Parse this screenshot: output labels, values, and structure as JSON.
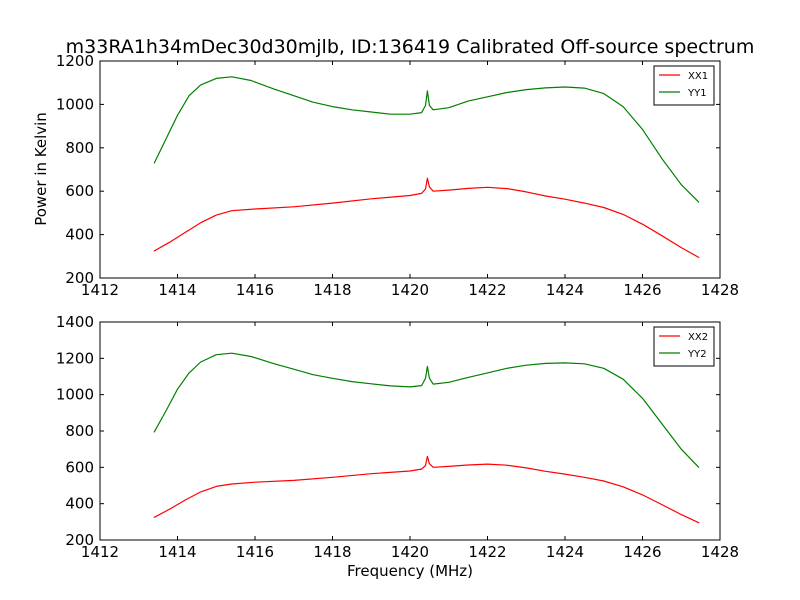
{
  "chart_data": {
    "title": "m33RA1h34mDec30d30mjlb, ID:136419 Calibrated Off-source spectrum",
    "xlabel": "Frequency (MHz)",
    "ylabel": "Power in Kelvin",
    "panels": [
      {
        "type": "line",
        "xlim": [
          1412,
          1428
        ],
        "ylim": [
          200,
          1200
        ],
        "xticks": [
          1412,
          1414,
          1416,
          1418,
          1420,
          1422,
          1424,
          1426,
          1428
        ],
        "yticks": [
          200,
          400,
          600,
          800,
          1000,
          1200
        ],
        "grid": false,
        "legend_position": "top-right",
        "series": [
          {
            "name": "XX1",
            "color": "#ff0000",
            "x": [
              1413.4,
              1413.8,
              1414.2,
              1414.6,
              1415.0,
              1415.4,
              1416.0,
              1417.0,
              1418.0,
              1419.0,
              1420.0,
              1420.3,
              1420.4,
              1420.45,
              1420.5,
              1420.6,
              1421.0,
              1421.5,
              1422.0,
              1422.5,
              1423.0,
              1423.5,
              1424.0,
              1424.5,
              1425.0,
              1425.5,
              1426.0,
              1426.5,
              1427.0,
              1427.45
            ],
            "y": [
              325,
              365,
              410,
              455,
              490,
              510,
              518,
              528,
              545,
              565,
              580,
              590,
              610,
              660,
              620,
              600,
              605,
              613,
              618,
              612,
              597,
              578,
              563,
              545,
              525,
              493,
              448,
              395,
              340,
              295
            ]
          },
          {
            "name": "YY1",
            "color": "#008000",
            "x": [
              1413.4,
              1413.7,
              1414.0,
              1414.3,
              1414.6,
              1415.0,
              1415.4,
              1415.9,
              1416.5,
              1417.0,
              1417.5,
              1418.0,
              1418.5,
              1419.0,
              1419.5,
              1420.0,
              1420.3,
              1420.4,
              1420.45,
              1420.5,
              1420.6,
              1421.0,
              1421.5,
              1422.0,
              1422.5,
              1423.0,
              1423.5,
              1424.0,
              1424.5,
              1425.0,
              1425.5,
              1426.0,
              1426.5,
              1427.0,
              1427.45
            ],
            "y": [
              730,
              840,
              950,
              1040,
              1090,
              1120,
              1127,
              1110,
              1070,
              1040,
              1010,
              990,
              975,
              965,
              955,
              955,
              962,
              995,
              1062,
              995,
              975,
              985,
              1015,
              1035,
              1055,
              1068,
              1076,
              1080,
              1075,
              1050,
              990,
              885,
              750,
              630,
              550
            ]
          }
        ]
      },
      {
        "type": "line",
        "xlim": [
          1412,
          1428
        ],
        "ylim": [
          200,
          1400
        ],
        "xticks": [
          1412,
          1414,
          1416,
          1418,
          1420,
          1422,
          1424,
          1426,
          1428
        ],
        "yticks": [
          200,
          400,
          600,
          800,
          1000,
          1200,
          1400
        ],
        "grid": false,
        "legend_position": "top-right",
        "series": [
          {
            "name": "XX2",
            "color": "#ff0000",
            "x": [
              1413.4,
              1413.8,
              1414.2,
              1414.6,
              1415.0,
              1415.4,
              1416.0,
              1417.0,
              1418.0,
              1419.0,
              1420.0,
              1420.3,
              1420.4,
              1420.45,
              1420.5,
              1420.6,
              1421.0,
              1421.5,
              1422.0,
              1422.5,
              1423.0,
              1423.5,
              1424.0,
              1424.5,
              1425.0,
              1425.5,
              1426.0,
              1426.5,
              1427.0,
              1427.45
            ],
            "y": [
              325,
              370,
              420,
              465,
              495,
              508,
              518,
              528,
              545,
              565,
              580,
              590,
              610,
              660,
              620,
              600,
              605,
              613,
              618,
              612,
              597,
              578,
              563,
              545,
              525,
              493,
              448,
              395,
              340,
              295
            ]
          },
          {
            "name": "YY2",
            "color": "#008000",
            "x": [
              1413.4,
              1413.7,
              1414.0,
              1414.3,
              1414.6,
              1415.0,
              1415.4,
              1415.9,
              1416.5,
              1417.0,
              1417.5,
              1418.0,
              1418.5,
              1419.0,
              1419.5,
              1420.0,
              1420.3,
              1420.4,
              1420.45,
              1420.5,
              1420.6,
              1421.0,
              1421.5,
              1422.0,
              1422.5,
              1423.0,
              1423.5,
              1424.0,
              1424.5,
              1425.0,
              1425.5,
              1426.0,
              1426.5,
              1427.0,
              1427.45
            ],
            "y": [
              795,
              910,
              1030,
              1120,
              1180,
              1220,
              1228,
              1210,
              1170,
              1140,
              1110,
              1090,
              1072,
              1060,
              1048,
              1043,
              1050,
              1090,
              1155,
              1090,
              1058,
              1068,
              1095,
              1120,
              1145,
              1162,
              1172,
              1175,
              1170,
              1145,
              1085,
              980,
              840,
              700,
              600
            ]
          }
        ]
      }
    ]
  }
}
